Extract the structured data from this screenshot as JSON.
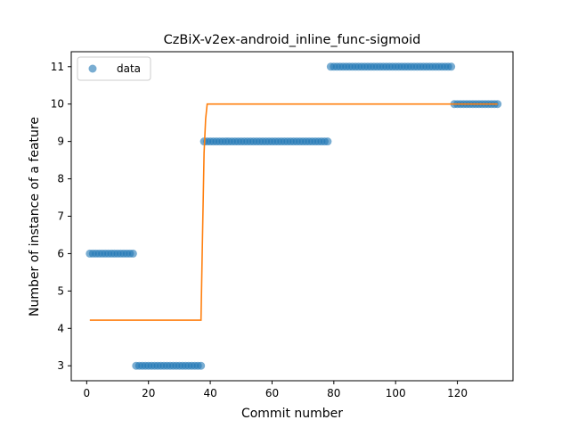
{
  "chart_data": {
    "type": "scatter",
    "title": "CzBiX-v2ex-android_inline_func-sigmoid",
    "xlabel": "Commit number",
    "ylabel": "Number of instance of a feature",
    "xlim": [
      -5,
      138
    ],
    "ylim": [
      2.6,
      11.4
    ],
    "xticks": [
      0,
      20,
      40,
      60,
      80,
      100,
      120
    ],
    "yticks": [
      3,
      4,
      5,
      6,
      7,
      8,
      9,
      10,
      11
    ],
    "grid": false,
    "legend": {
      "placement": "top-left",
      "entries": [
        "data"
      ]
    },
    "colors": {
      "data": "#1f77b4",
      "fit": "#ff7f0e"
    },
    "series": [
      {
        "name": "data",
        "kind": "scatter",
        "segments": [
          {
            "x_from": 1,
            "x_to": 15,
            "y": 6
          },
          {
            "x_from": 16,
            "x_to": 37,
            "y": 3
          },
          {
            "x_from": 38,
            "x_to": 78,
            "y": 9
          },
          {
            "x_from": 79,
            "x_to": 118,
            "y": 11
          },
          {
            "x_from": 119,
            "x_to": 133,
            "y": 10
          }
        ]
      },
      {
        "kind": "line",
        "x": [
          1,
          37,
          37.5,
          38,
          38.5,
          39,
          133
        ],
        "y": [
          4.22,
          4.22,
          6.5,
          8.7,
          9.6,
          10.0,
          10.0
        ]
      }
    ]
  }
}
